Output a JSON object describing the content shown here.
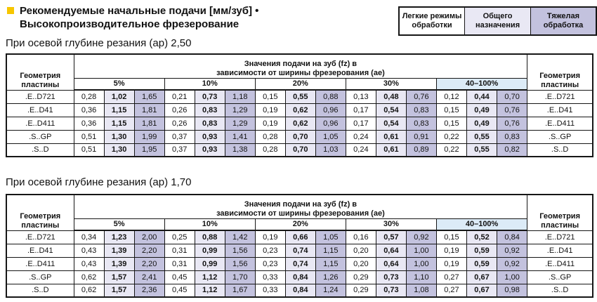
{
  "header": {
    "title_line1": "Рекомендуемые начальные подачи [мм/зуб] •",
    "title_line2": "Высокопроизводительное фрезерование"
  },
  "legend": {
    "items": [
      {
        "label": "Легкие режимы обработки",
        "bg": "#FFFFFF"
      },
      {
        "label": "Общего назначения",
        "bg": "#E9E8F4"
      },
      {
        "label": "Тяжелая обработка",
        "bg": "#C3C2DE"
      }
    ]
  },
  "table_common": {
    "geometry_header": "Геометрия пластины",
    "values_header_line1": "Значения подачи на зуб (fz) в",
    "values_header_line2": "зависимости от ширины фрезерования (ae)",
    "width_groups": [
      "5%",
      "10%",
      "20%",
      "30%",
      "40–100%"
    ]
  },
  "tables": [
    {
      "caption": "При осевой глубине резания (ap) 2,50",
      "rows": [
        {
          "label": ".E..D721",
          "values": [
            [
              "0,28",
              "1,02",
              "1,65"
            ],
            [
              "0,21",
              "0,73",
              "1,18"
            ],
            [
              "0,15",
              "0,55",
              "0,88"
            ],
            [
              "0,13",
              "0,48",
              "0,76"
            ],
            [
              "0,12",
              "0,44",
              "0,70"
            ]
          ]
        },
        {
          "label": ".E..D41",
          "values": [
            [
              "0,36",
              "1,15",
              "1,81"
            ],
            [
              "0,26",
              "0,83",
              "1,29"
            ],
            [
              "0,19",
              "0,62",
              "0,96"
            ],
            [
              "0,17",
              "0,54",
              "0,83"
            ],
            [
              "0,15",
              "0,49",
              "0,76"
            ]
          ]
        },
        {
          "label": ".E..D411",
          "values": [
            [
              "0,36",
              "1,15",
              "1,81"
            ],
            [
              "0,26",
              "0,83",
              "1,29"
            ],
            [
              "0,19",
              "0,62",
              "0,96"
            ],
            [
              "0,17",
              "0,54",
              "0,83"
            ],
            [
              "0,15",
              "0,49",
              "0,76"
            ]
          ]
        },
        {
          "label": ".S..GP",
          "values": [
            [
              "0,51",
              "1,30",
              "1,99"
            ],
            [
              "0,37",
              "0,93",
              "1,41"
            ],
            [
              "0,28",
              "0,70",
              "1,05"
            ],
            [
              "0,24",
              "0,61",
              "0,91"
            ],
            [
              "0,22",
              "0,55",
              "0,83"
            ]
          ]
        },
        {
          "label": ".S..D",
          "values": [
            [
              "0,51",
              "1,30",
              "1,95"
            ],
            [
              "0,37",
              "0,93",
              "1,38"
            ],
            [
              "0,28",
              "0,70",
              "1,03"
            ],
            [
              "0,24",
              "0,61",
              "0,89"
            ],
            [
              "0,22",
              "0,55",
              "0,82"
            ]
          ]
        }
      ]
    },
    {
      "caption": "При осевой глубине резания (ap) 1,70",
      "rows": [
        {
          "label": ".E..D721",
          "values": [
            [
              "0,34",
              "1,23",
              "2,00"
            ],
            [
              "0,25",
              "0,88",
              "1,42"
            ],
            [
              "0,19",
              "0,66",
              "1,05"
            ],
            [
              "0,16",
              "0,57",
              "0,92"
            ],
            [
              "0,15",
              "0,52",
              "0,84"
            ]
          ]
        },
        {
          "label": ".E..D41",
          "values": [
            [
              "0,43",
              "1,39",
              "2,20"
            ],
            [
              "0,31",
              "0,99",
              "1,56"
            ],
            [
              "0,23",
              "0,74",
              "1,15"
            ],
            [
              "0,20",
              "0,64",
              "1,00"
            ],
            [
              "0,19",
              "0,59",
              "0,92"
            ]
          ]
        },
        {
          "label": ".E..D411",
          "values": [
            [
              "0,43",
              "1,39",
              "2,20"
            ],
            [
              "0,31",
              "0,99",
              "1,56"
            ],
            [
              "0,23",
              "0,74",
              "1,15"
            ],
            [
              "0,20",
              "0,64",
              "1,00"
            ],
            [
              "0,19",
              "0,59",
              "0,92"
            ]
          ]
        },
        {
          "label": ".S..GP",
          "values": [
            [
              "0,62",
              "1,57",
              "2,41"
            ],
            [
              "0,45",
              "1,12",
              "1,70"
            ],
            [
              "0,33",
              "0,84",
              "1,26"
            ],
            [
              "0,29",
              "0,73",
              "1,10"
            ],
            [
              "0,27",
              "0,67",
              "1,00"
            ]
          ]
        },
        {
          "label": ".S..D",
          "values": [
            [
              "0,62",
              "1,57",
              "2,36"
            ],
            [
              "0,45",
              "1,12",
              "1,67"
            ],
            [
              "0,33",
              "0,84",
              "1,24"
            ],
            [
              "0,29",
              "0,73",
              "1,08"
            ],
            [
              "0,27",
              "0,67",
              "0,98"
            ]
          ]
        }
      ]
    }
  ],
  "colors": {
    "accent_yellow": "#F7C600",
    "shade_light": "#E9E8F4",
    "shade_medium": "#C3C2DE",
    "shade_blue_header": "#DCEBF7",
    "border": "#161616"
  }
}
